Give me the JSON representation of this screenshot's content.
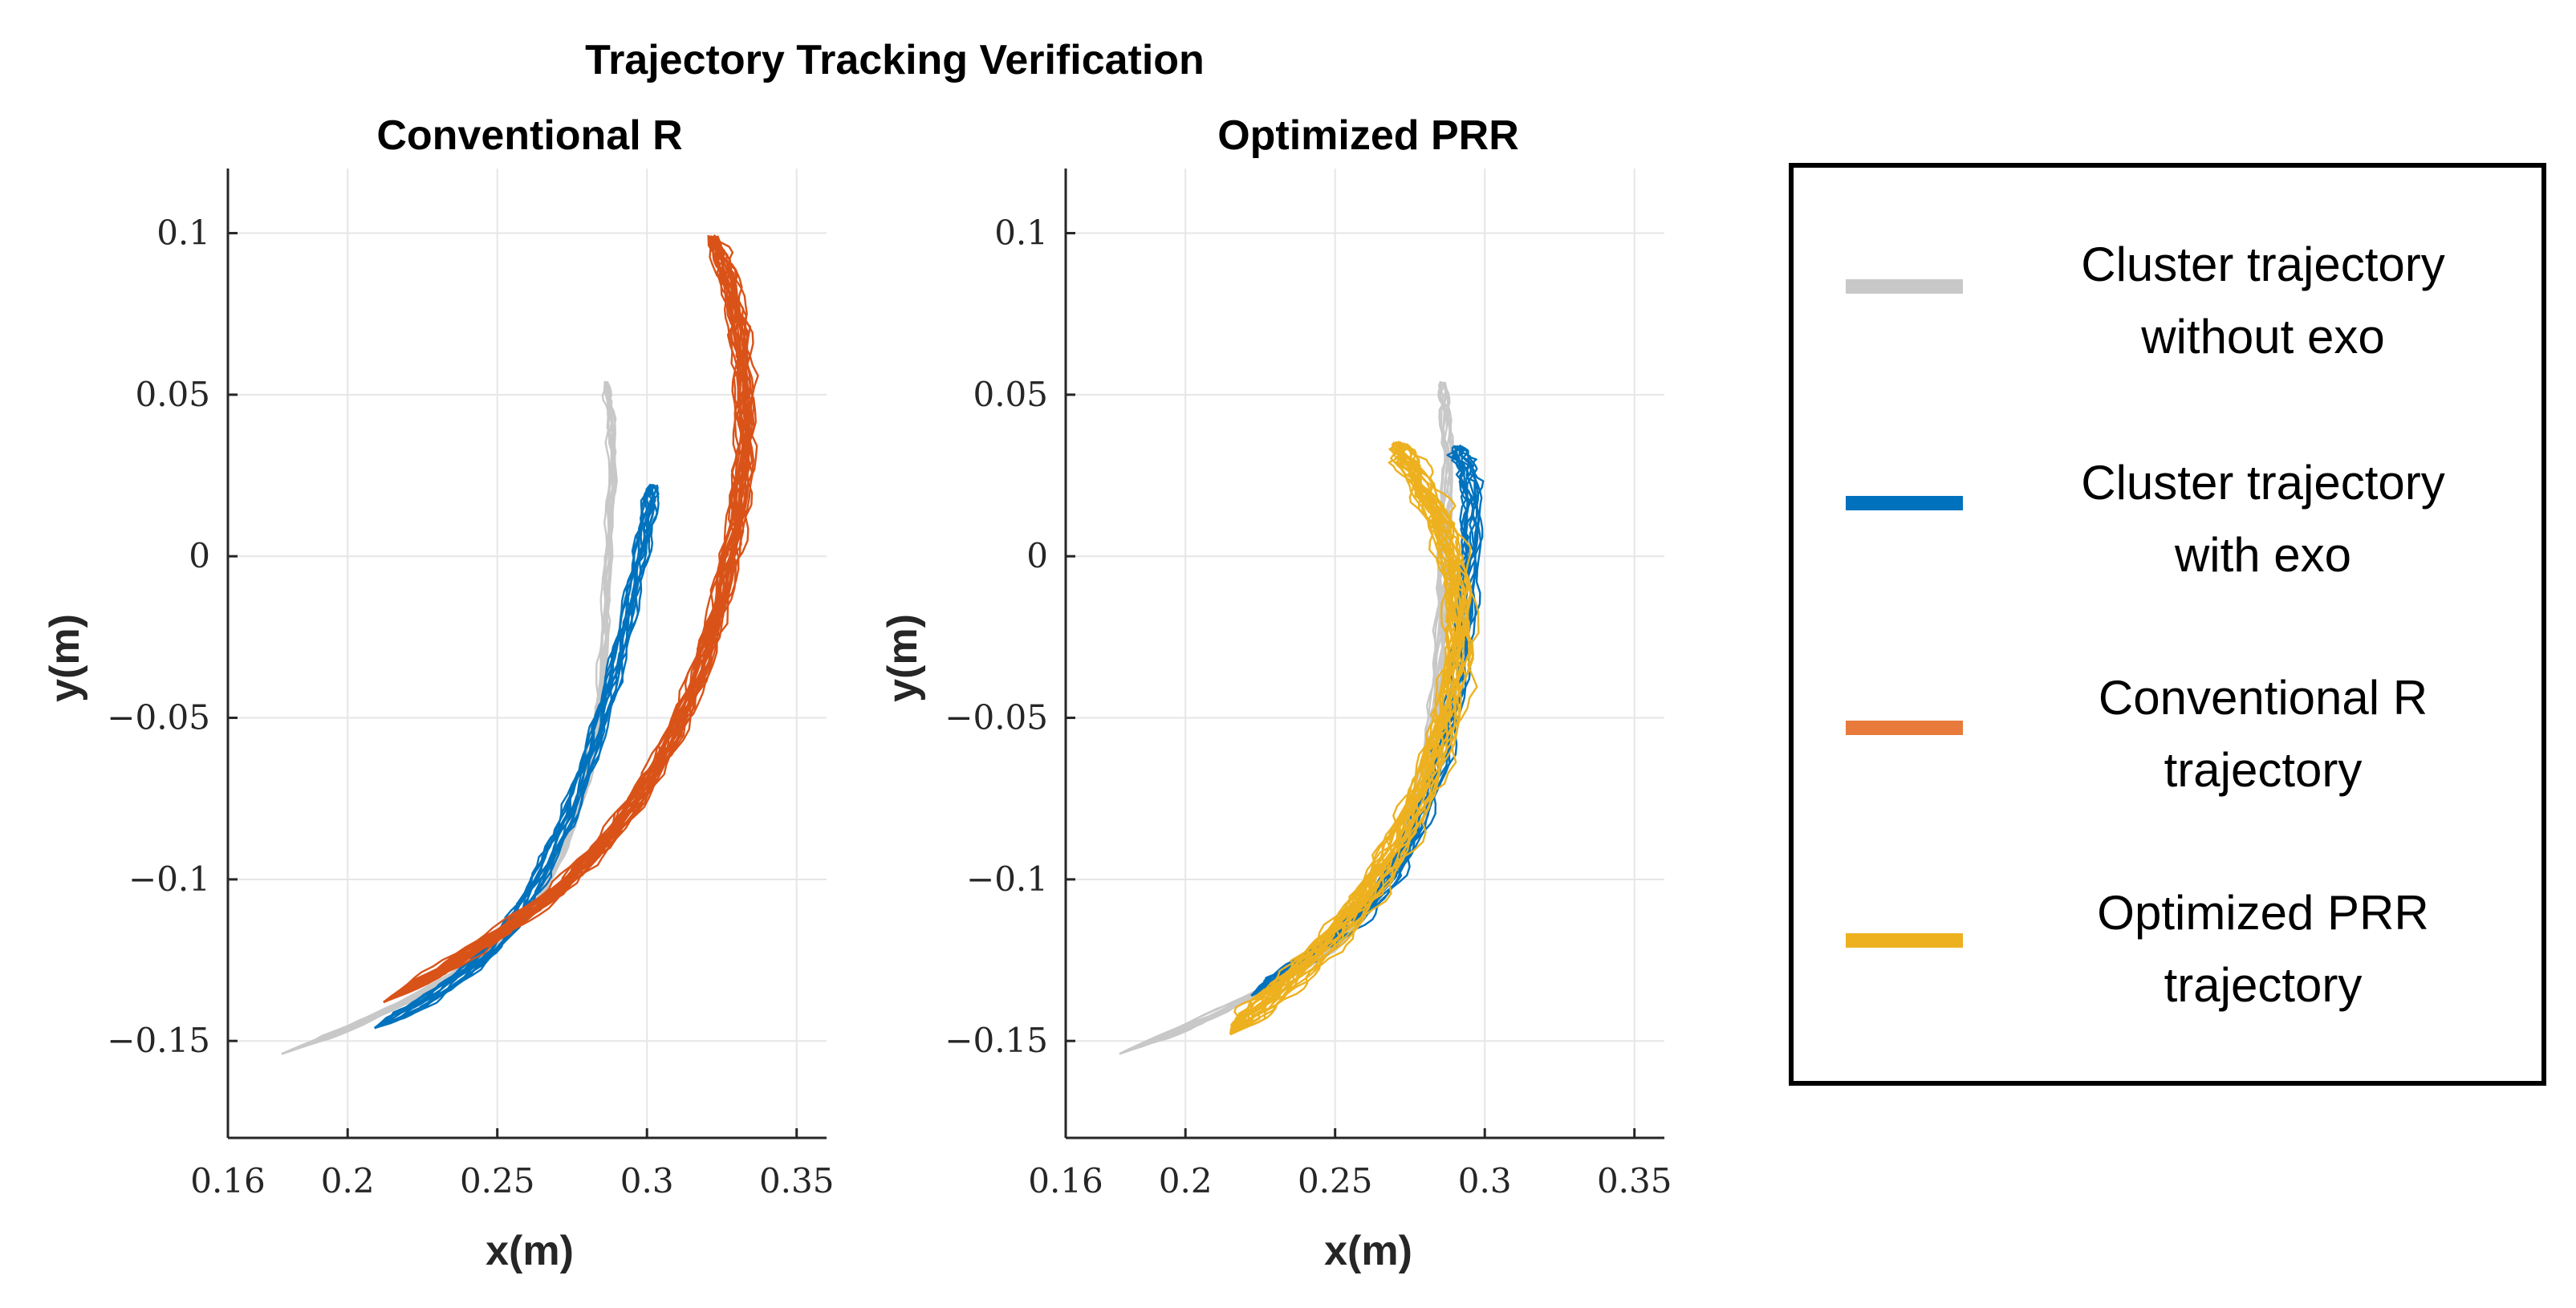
{
  "figure_title": "Trajectory Tracking Verification",
  "colors": {
    "without_exo": "#c8c8c8",
    "with_exo": "#0072bd",
    "conventional_r": "#d95319",
    "optimized_prr": "#edb120",
    "legend_conventional_r": "#e87a3c",
    "grid": "#e6e6e6",
    "axis": "#262626"
  },
  "legend": {
    "entries": [
      {
        "label_line1": "Cluster trajectory",
        "label_line2": "without exo",
        "color": "#c8c8c8"
      },
      {
        "label_line1": "Cluster trajectory",
        "label_line2": "with exo",
        "color": "#0072bd"
      },
      {
        "label_line1": "Conventional R",
        "label_line2": "trajectory",
        "color": "#e87a3c"
      },
      {
        "label_line1": "Optimized PRR",
        "label_line2": "trajectory",
        "color": "#edb120"
      }
    ]
  },
  "chart_data": [
    {
      "type": "line",
      "title": "Conventional R",
      "xlabel": "x(m)",
      "ylabel": "y(m)",
      "xlim": [
        0.16,
        0.36
      ],
      "ylim": [
        -0.18,
        0.12
      ],
      "xticks": [
        0.16,
        0.2,
        0.25,
        0.3,
        0.35
      ],
      "xtick_labels": [
        "0.16",
        "0.2",
        "0.25",
        "0.3",
        "0.35"
      ],
      "yticks": [
        -0.15,
        -0.1,
        -0.05,
        0,
        0.05,
        0.1
      ],
      "ytick_labels": [
        "−0.15",
        "−0.1",
        "−0.05",
        "0",
        "0.05",
        "0.1"
      ],
      "grid": true,
      "series": [
        {
          "color_key": "without_exo",
          "repeats": 10,
          "spread": 0.0025,
          "x": [
            0.178,
            0.2,
            0.225,
            0.248,
            0.262,
            0.272,
            0.279,
            0.283,
            0.285,
            0.286,
            0.287,
            0.288,
            0.287,
            0.286
          ],
          "y": [
            -0.154,
            -0.146,
            -0.135,
            -0.122,
            -0.108,
            -0.09,
            -0.07,
            -0.05,
            -0.03,
            -0.01,
            0.01,
            0.03,
            0.045,
            0.054
          ]
        },
        {
          "color_key": "with_exo",
          "repeats": 14,
          "spread": 0.004,
          "x": [
            0.209,
            0.222,
            0.235,
            0.248,
            0.258,
            0.266,
            0.274,
            0.281,
            0.287,
            0.292,
            0.296,
            0.299,
            0.301,
            0.302
          ],
          "y": [
            -0.146,
            -0.14,
            -0.132,
            -0.122,
            -0.11,
            -0.096,
            -0.08,
            -0.062,
            -0.044,
            -0.026,
            -0.008,
            0.006,
            0.016,
            0.022
          ]
        },
        {
          "color_key": "conventional_r",
          "repeats": 24,
          "spread": 0.0045,
          "x": [
            0.212,
            0.232,
            0.252,
            0.27,
            0.285,
            0.298,
            0.309,
            0.318,
            0.325,
            0.33,
            0.333,
            0.333,
            0.331,
            0.327,
            0.322
          ],
          "y": [
            -0.138,
            -0.128,
            -0.116,
            -0.104,
            -0.09,
            -0.074,
            -0.056,
            -0.036,
            -0.014,
            0.008,
            0.03,
            0.052,
            0.072,
            0.088,
            0.099
          ]
        }
      ]
    },
    {
      "type": "line",
      "title": "Optimized PRR",
      "xlabel": "x(m)",
      "ylabel": "y(m)",
      "xlim": [
        0.16,
        0.36
      ],
      "ylim": [
        -0.18,
        0.12
      ],
      "xticks": [
        0.16,
        0.2,
        0.25,
        0.3,
        0.35
      ],
      "xtick_labels": [
        "0.16",
        "0.2",
        "0.25",
        "0.3",
        "0.35"
      ],
      "yticks": [
        -0.15,
        -0.1,
        -0.05,
        0,
        0.05,
        0.1
      ],
      "ytick_labels": [
        "−0.15",
        "−0.1",
        "−0.05",
        "0",
        "0.05",
        "0.1"
      ],
      "grid": true,
      "series": [
        {
          "color_key": "without_exo",
          "repeats": 10,
          "spread": 0.0025,
          "x": [
            0.178,
            0.2,
            0.225,
            0.248,
            0.262,
            0.272,
            0.279,
            0.283,
            0.285,
            0.286,
            0.287,
            0.288,
            0.287,
            0.286
          ],
          "y": [
            -0.154,
            -0.146,
            -0.135,
            -0.122,
            -0.108,
            -0.09,
            -0.07,
            -0.05,
            -0.03,
            -0.01,
            0.01,
            0.03,
            0.045,
            0.054
          ]
        },
        {
          "color_key": "with_exo",
          "repeats": 14,
          "spread": 0.004,
          "x": [
            0.222,
            0.235,
            0.248,
            0.26,
            0.27,
            0.278,
            0.285,
            0.29,
            0.293,
            0.295,
            0.296,
            0.295,
            0.293,
            0.291
          ],
          "y": [
            -0.136,
            -0.128,
            -0.12,
            -0.11,
            -0.098,
            -0.082,
            -0.064,
            -0.044,
            -0.024,
            -0.004,
            0.012,
            0.024,
            0.03,
            0.034
          ]
        },
        {
          "color_key": "optimized_prr",
          "repeats": 26,
          "spread": 0.007,
          "x": [
            0.215,
            0.225,
            0.237,
            0.25,
            0.262,
            0.272,
            0.281,
            0.288,
            0.292,
            0.292,
            0.288,
            0.282,
            0.276,
            0.272
          ],
          "y": [
            -0.148,
            -0.14,
            -0.13,
            -0.118,
            -0.104,
            -0.088,
            -0.07,
            -0.05,
            -0.03,
            -0.01,
            0.006,
            0.018,
            0.028,
            0.035
          ]
        }
      ]
    }
  ]
}
